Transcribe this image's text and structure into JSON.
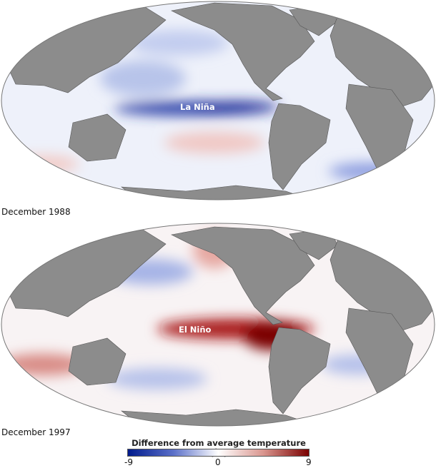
{
  "maps": [
    {
      "date": "December 1988",
      "label": "La Niña"
    },
    {
      "date": "December 1997",
      "label": "El Niño"
    }
  ],
  "legend": {
    "title": "Difference from average temperature (˚F)",
    "min": "-9",
    "mid": "0",
    "max": "9",
    "colors": {
      "cold": "#001a8c",
      "neutral": "#ffffff",
      "warm": "#7a0000"
    }
  },
  "colors": {
    "land": "#8c8c8c",
    "ocean": "#f4f6fb"
  }
}
